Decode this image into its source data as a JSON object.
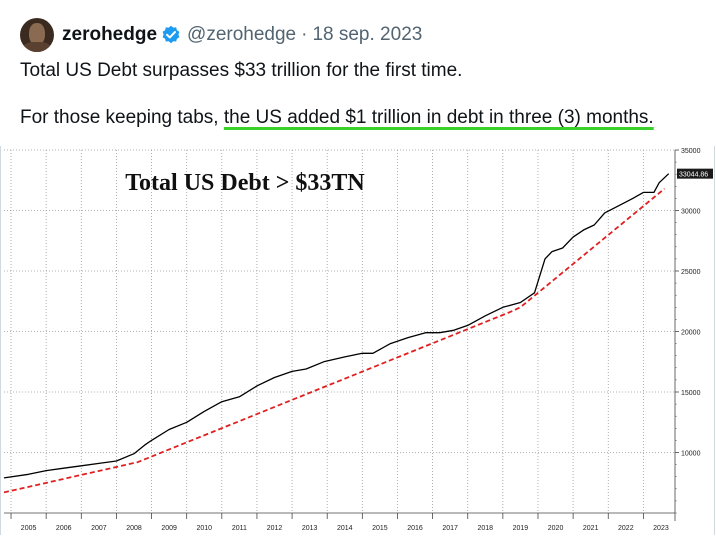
{
  "tweet": {
    "author_name": "zerohedge",
    "verified": true,
    "handle": "@zerohedge",
    "separator": "·",
    "date": "18 sep. 2023",
    "text_line1": "Total US Debt surpasses $33 trillion for the first time.",
    "text_line2_prefix": "For those keeping tabs, ",
    "text_line2_highlight": "the US added $1 trillion in debt in three (3) months.",
    "highlight_color": "#39d12a"
  },
  "chart_data": {
    "type": "line",
    "title": "Total US Debt > $33TN",
    "ylim": [
      5000,
      35000
    ],
    "y_ticks": [
      10000,
      15000,
      20000,
      25000,
      30000,
      35000
    ],
    "y_tick_labels": [
      "10000",
      "15000",
      "20000",
      "25000",
      "30000",
      "35000"
    ],
    "x_tick_labels": [
      "2005",
      "2006",
      "2007",
      "2008",
      "2009",
      "2010",
      "2011",
      "2012",
      "2013",
      "2014",
      "2015",
      "2016",
      "2017",
      "2018",
      "2019",
      "2020",
      "2021",
      "2022",
      "2023"
    ],
    "last_value_label": "33044.86",
    "grid": true,
    "series": [
      {
        "style": "solid",
        "color": "#000000",
        "x": [
          2004.8,
          2005.5,
          2006.0,
          2006.5,
          2007.0,
          2007.5,
          2008.0,
          2008.5,
          2008.8,
          2009.0,
          2009.5,
          2010.0,
          2010.5,
          2011.0,
          2011.5,
          2012.0,
          2012.5,
          2013.0,
          2013.4,
          2013.9,
          2014.5,
          2015.0,
          2015.3,
          2015.8,
          2016.3,
          2016.8,
          2017.2,
          2017.6,
          2018.0,
          2018.5,
          2019.0,
          2019.5,
          2019.9,
          2020.2,
          2020.4,
          2020.7,
          2021.0,
          2021.3,
          2021.6,
          2021.9,
          2022.3,
          2022.7,
          2023.0,
          2023.3,
          2023.45,
          2023.72
        ],
        "y": [
          7900,
          8200,
          8500,
          8700,
          8900,
          9100,
          9300,
          9900,
          10600,
          11000,
          11900,
          12500,
          13400,
          14200,
          14600,
          15500,
          16200,
          16700,
          16900,
          17500,
          17900,
          18200,
          18200,
          19000,
          19500,
          19900,
          19900,
          20100,
          20500,
          21300,
          22000,
          22400,
          23200,
          26000,
          26600,
          26900,
          27800,
          28400,
          28800,
          29800,
          30400,
          31000,
          31500,
          31500,
          32300,
          33044.86
        ]
      },
      {
        "style": "dashed",
        "color": "#e02020",
        "x": [
          2004.8,
          2008.6,
          2019.2,
          2019.5,
          2023.6
        ],
        "y": [
          6700,
          9200,
          21600,
          22000,
          31800
        ]
      }
    ]
  }
}
